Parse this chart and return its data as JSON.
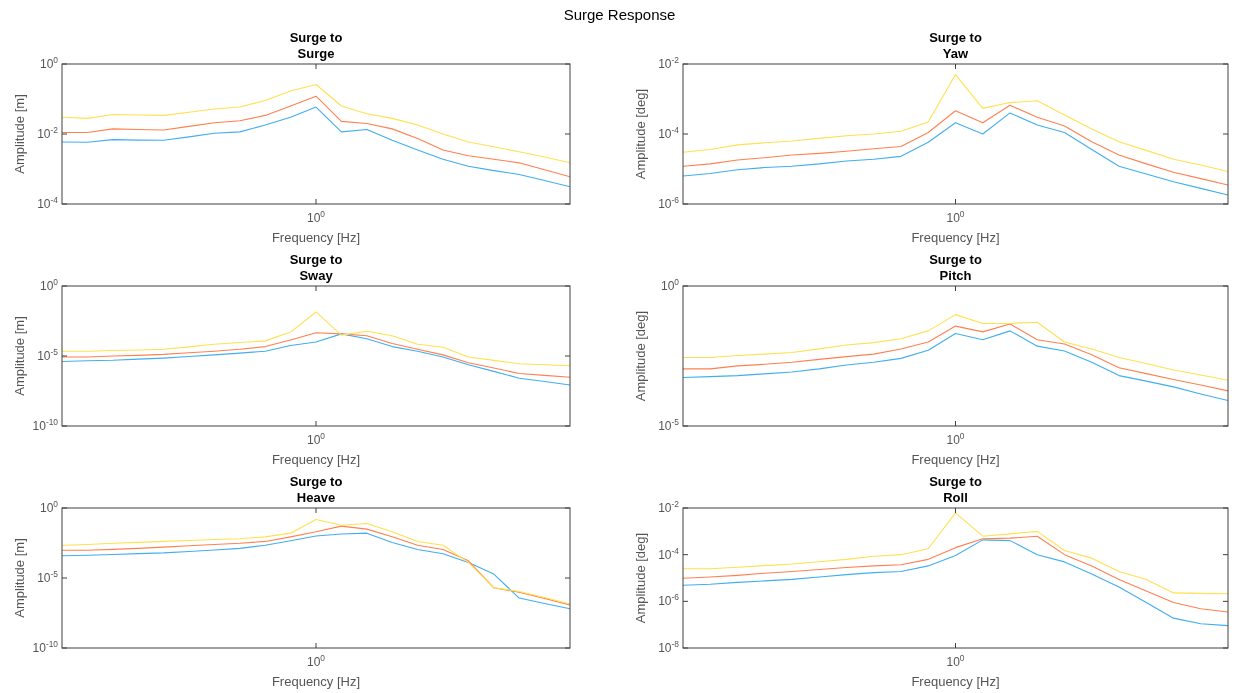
{
  "chart_data": [
    {
      "type": "line",
      "title": "Surge to\nSurge",
      "annotations": [
        "Surge Response",
        "10$^{0}$"
      ],
      "xlabel": "Frequency [Hz]",
      "ylabel": "Amplitude [m]",
      "log": "y",
      "ylim": [
        0.0001,
        1
      ],
      "yticks": [
        {
          "value": 0.0001,
          "label": "10$^{-4}$"
        },
        {
          "value": 0.01,
          "label": "10$^{-2}$"
        },
        {
          "value": 1,
          "label": "10$^{0}$"
        }
      ],
      "categories": [
        null,
        null,
        null,
        null,
        null,
        null,
        null,
        null,
        null,
        null,
        null,
        null,
        null,
        null,
        null,
        null,
        null,
        null,
        null,
        null,
        null
      ],
      "series": [
        {
          "color": "#40aef0",
          "values": [
            0.0059,
            0.0058,
            0.0069,
            0.0067,
            0.0066,
            0.0083,
            0.0105,
            0.0115,
            0.018,
            0.03,
            0.059,
            0.0115,
            0.0135,
            0.0066,
            0.0035,
            0.0019,
            0.0012,
            0.0009,
            0.0007,
            0.00047,
            0.00031
          ]
        },
        {
          "color": "#ff8050",
          "values": [
            0.011,
            0.011,
            0.014,
            0.0135,
            0.013,
            0.0165,
            0.021,
            0.024,
            0.034,
            0.063,
            0.12,
            0.023,
            0.02,
            0.014,
            0.0074,
            0.0035,
            0.0024,
            0.0019,
            0.0015,
            0.00095,
            0.0006
          ]
        },
        {
          "color": "#ffe050",
          "values": [
            0.03,
            0.028,
            0.036,
            0.035,
            0.034,
            0.042,
            0.052,
            0.059,
            0.091,
            0.17,
            0.26,
            0.063,
            0.038,
            0.028,
            0.018,
            0.01,
            0.0059,
            0.0043,
            0.0031,
            0.0022,
            0.0015
          ]
        }
      ]
    },
    {
      "type": "line",
      "title": "Surge to\nYaw",
      "annotations": [
        "10$^{0}$"
      ],
      "xlabel": "Frequency [Hz]",
      "ylabel": "Amplitude [deg]",
      "log": "y",
      "ylim": [
        1e-06,
        0.01
      ],
      "yticks": [
        {
          "value": 1e-06,
          "label": "10$^{-6}$"
        },
        {
          "value": 0.0001,
          "label": "10$^{-4}$"
        },
        {
          "value": 0.01,
          "label": "10$^{-2}$"
        }
      ],
      "categories": [
        null,
        null,
        null,
        null,
        null,
        null,
        null,
        null,
        null,
        null,
        null,
        null,
        null,
        null,
        null,
        null,
        null,
        null,
        null,
        null,
        null
      ],
      "series": [
        {
          "color": "#40aef0",
          "values": [
            6.3e-06,
            7.4e-06,
            9.5e-06,
            1.1e-05,
            1.2e-05,
            1.4e-05,
            1.7e-05,
            1.9e-05,
            2.3e-05,
            5.8e-05,
            0.00021,
            0.0001,
            0.0004,
            0.00018,
            0.00011,
            3.6e-05,
            1.2e-05,
            7.2e-06,
            4.3e-06,
            2.8e-06,
            1.8e-06
          ]
        },
        {
          "color": "#ff8050",
          "values": [
            1.2e-05,
            1.4e-05,
            1.8e-05,
            2.1e-05,
            2.5e-05,
            2.8e-05,
            3.2e-05,
            3.8e-05,
            4.4e-05,
            0.00011,
            0.00046,
            0.00021,
            0.00066,
            0.0003,
            0.00017,
            6e-05,
            2.5e-05,
            1.4e-05,
            8.1e-06,
            5.3e-06,
            3.5e-06
          ]
        },
        {
          "color": "#ffe050",
          "values": [
            3e-05,
            3.6e-05,
            4.9e-05,
            5.6e-05,
            6.3e-05,
            7.5e-05,
            8.9e-05,
            0.0001,
            0.00012,
            0.00022,
            0.005,
            0.00054,
            0.00079,
            0.00089,
            0.00035,
            0.00014,
            6e-05,
            3.4e-05,
            1.9e-05,
            1.3e-05,
            8.5e-06
          ]
        }
      ]
    },
    {
      "type": "line",
      "title": "Surge to\nSway",
      "annotations": [
        "10$^{0}$"
      ],
      "xlabel": "Frequency [Hz]",
      "ylabel": "Amplitude [m]",
      "log": "y",
      "ylim": [
        1e-10,
        1
      ],
      "yticks": [
        {
          "value": 1e-10,
          "label": "10$^{-10}$"
        },
        {
          "value": 1e-05,
          "label": "10$^{-5}$"
        },
        {
          "value": 1,
          "label": "10$^{0}$"
        }
      ],
      "categories": [
        null,
        null,
        null,
        null,
        null,
        null,
        null,
        null,
        null,
        null,
        null,
        null,
        null,
        null,
        null,
        null,
        null,
        null,
        null,
        null,
        null
      ],
      "series": [
        {
          "color": "#40aef0",
          "values": [
            4e-06,
            4.6e-06,
            5e-06,
            6e-06,
            7.1e-06,
            9.2e-06,
            1.2e-05,
            1.6e-05,
            2.2e-05,
            5.6e-05,
            0.0001,
            0.00038,
            0.00017,
            4.7e-05,
            2.2e-05,
            8.5e-06,
            2.4e-06,
            8e-07,
            2.6e-07,
            1.5e-07,
            8.5e-08
          ]
        },
        {
          "color": "#ff8050",
          "values": [
            8.5e-06,
            8.5e-06,
            1e-05,
            1.1e-05,
            1.3e-05,
            1.7e-05,
            2.2e-05,
            3e-05,
            4.7e-05,
            0.00014,
            0.00046,
            0.00038,
            0.00028,
            7.8e-05,
            3e-05,
            1.2e-05,
            3.3e-06,
            1.4e-06,
            5.6e-07,
            4.1e-07,
            3e-07
          ]
        },
        {
          "color": "#ffe050",
          "values": [
            2.2e-05,
            2.2e-05,
            2.5e-05,
            2.7e-05,
            3e-05,
            4.5e-05,
            6.9e-05,
            9.3e-05,
            0.00012,
            0.00051,
            0.014,
            0.00031,
            0.00059,
            0.00028,
            6.9e-05,
            4.2e-05,
            8.5e-06,
            4.9e-06,
            2.8e-06,
            2.4e-06,
            2e-06
          ]
        }
      ]
    },
    {
      "type": "line",
      "title": "Surge to\nPitch",
      "annotations": [
        "10$^{0}$"
      ],
      "xlabel": "Frequency [Hz]",
      "ylabel": "Amplitude [deg]",
      "log": "y",
      "ylim": [
        1e-05,
        1
      ],
      "yticks": [
        {
          "value": 1e-05,
          "label": "10$^{-5}$"
        },
        {
          "value": 1,
          "label": "10$^{0}$"
        }
      ],
      "categories": [
        null,
        null,
        null,
        null,
        null,
        null,
        null,
        null,
        null,
        null,
        null,
        null,
        null,
        null,
        null,
        null,
        null,
        null,
        null,
        null,
        null
      ],
      "series": [
        {
          "color": "#40aef0",
          "values": [
            0.00054,
            0.00058,
            0.00063,
            0.00073,
            0.00085,
            0.0011,
            0.0015,
            0.0019,
            0.0026,
            0.0051,
            0.02,
            0.012,
            0.025,
            0.0071,
            0.0048,
            0.0019,
            0.00063,
            0.0004,
            0.00025,
            0.00014,
            8.1e-05
          ]
        },
        {
          "color": "#ff8050",
          "values": [
            0.0011,
            0.0011,
            0.0014,
            0.0016,
            0.0019,
            0.0024,
            0.003,
            0.0037,
            0.0056,
            0.01,
            0.037,
            0.023,
            0.044,
            0.012,
            0.0085,
            0.0035,
            0.0012,
            0.00074,
            0.00046,
            0.00029,
            0.00018
          ]
        },
        {
          "color": "#ffe050",
          "values": [
            0.0028,
            0.0028,
            0.0033,
            0.0037,
            0.0042,
            0.0057,
            0.0078,
            0.0095,
            0.013,
            0.025,
            0.095,
            0.046,
            0.046,
            0.051,
            0.01,
            0.0056,
            0.0028,
            0.0017,
            0.001,
            0.00066,
            0.00043
          ]
        }
      ]
    },
    {
      "type": "line",
      "title": "Surge to\nHeave",
      "annotations": [
        "10$^{0}$"
      ],
      "xlabel": "Frequency [Hz]",
      "ylabel": "Amplitude [m]",
      "log": "y",
      "ylim": [
        1e-10,
        1
      ],
      "yticks": [
        {
          "value": 1e-10,
          "label": "10$^{-10}$"
        },
        {
          "value": 1e-05,
          "label": "10$^{-5}$"
        },
        {
          "value": 1,
          "label": "10$^{0}$"
        }
      ],
      "categories": [
        null,
        null,
        null,
        null,
        null,
        null,
        null,
        null,
        null,
        null,
        null,
        null,
        null,
        null,
        null,
        null,
        null,
        null,
        null,
        null,
        null
      ],
      "series": [
        {
          "color": "#40aef0",
          "values": [
            0.00039,
            0.00042,
            0.00048,
            0.00055,
            0.00062,
            0.00079,
            0.001,
            0.0013,
            0.0022,
            0.0046,
            0.01,
            0.014,
            0.016,
            0.0034,
            0.0011,
            0.00054,
            0.00013,
            1.9e-05,
            3.7e-07,
            1.5e-07,
            6.3e-08
          ]
        },
        {
          "color": "#ff8050",
          "values": [
            0.00095,
            0.00095,
            0.0011,
            0.0013,
            0.0016,
            0.002,
            0.0025,
            0.003,
            0.0041,
            0.0087,
            0.02,
            0.051,
            0.031,
            0.0087,
            0.0022,
            0.0011,
            0.00017,
            2e-06,
            9.5e-07,
            3.4e-07,
            1.2e-07
          ]
        },
        {
          "color": "#ffe050",
          "values": [
            0.0022,
            0.0025,
            0.003,
            0.0035,
            0.0041,
            0.0048,
            0.0056,
            0.0063,
            0.0087,
            0.016,
            0.15,
            0.058,
            0.079,
            0.02,
            0.0041,
            0.0022,
            0.00013,
            2e-06,
            1.1e-06,
            4e-07,
            1.4e-07
          ]
        }
      ]
    },
    {
      "type": "line",
      "title": "Surge to\nRoll",
      "annotations": [
        "10$^{0}$"
      ],
      "xlabel": "Frequency [Hz]",
      "ylabel": "Amplitude [deg]",
      "log": "y",
      "ylim": [
        1e-08,
        0.01
      ],
      "yticks": [
        {
          "value": 1e-08,
          "label": "10$^{-8}$"
        },
        {
          "value": 1e-06,
          "label": "10$^{-6}$"
        },
        {
          "value": 0.0001,
          "label": "10$^{-4}$"
        },
        {
          "value": 0.01,
          "label": "10$^{-2}$"
        }
      ],
      "categories": [
        null,
        null,
        null,
        null,
        null,
        null,
        null,
        null,
        null,
        null,
        null,
        null,
        null,
        null,
        null,
        null,
        null,
        null,
        null,
        null,
        null
      ],
      "series": [
        {
          "color": "#40aef0",
          "values": [
            4.9e-06,
            5.4e-06,
            6.5e-06,
            7.5e-06,
            8.7e-06,
            1.1e-05,
            1.4e-05,
            1.7e-05,
            1.9e-05,
            3.3e-05,
            9.3e-05,
            0.00043,
            0.0004,
            0.0001,
            4.9e-05,
            1.5e-05,
            4.1e-06,
            8.9e-07,
            1.9e-07,
            1.1e-07,
            9.1e-08
          ]
        },
        {
          "color": "#ff8050",
          "values": [
            9.8e-06,
            1.1e-05,
            1.3e-05,
            1.6e-05,
            1.9e-05,
            2.3e-05,
            2.8e-05,
            3.3e-05,
            3.7e-05,
            6.3e-05,
            0.0002,
            0.00048,
            0.00051,
            0.00062,
            0.0001,
            3.3e-05,
            8.7e-06,
            2.8e-06,
            8.9e-07,
            4.8e-07,
            3.5e-07
          ]
        },
        {
          "color": "#ffe050",
          "values": [
            2.5e-05,
            2.5e-05,
            2.9e-05,
            3.4e-05,
            4e-05,
            5e-05,
            6.3e-05,
            8.5e-05,
            0.0001,
            0.00018,
            0.0062,
            0.00062,
            0.00078,
            0.001,
            0.00015,
            7.1e-05,
            1.9e-05,
            8.7e-06,
            2.3e-06,
            2.2e-06,
            2.1e-06
          ]
        }
      ]
    }
  ]
}
